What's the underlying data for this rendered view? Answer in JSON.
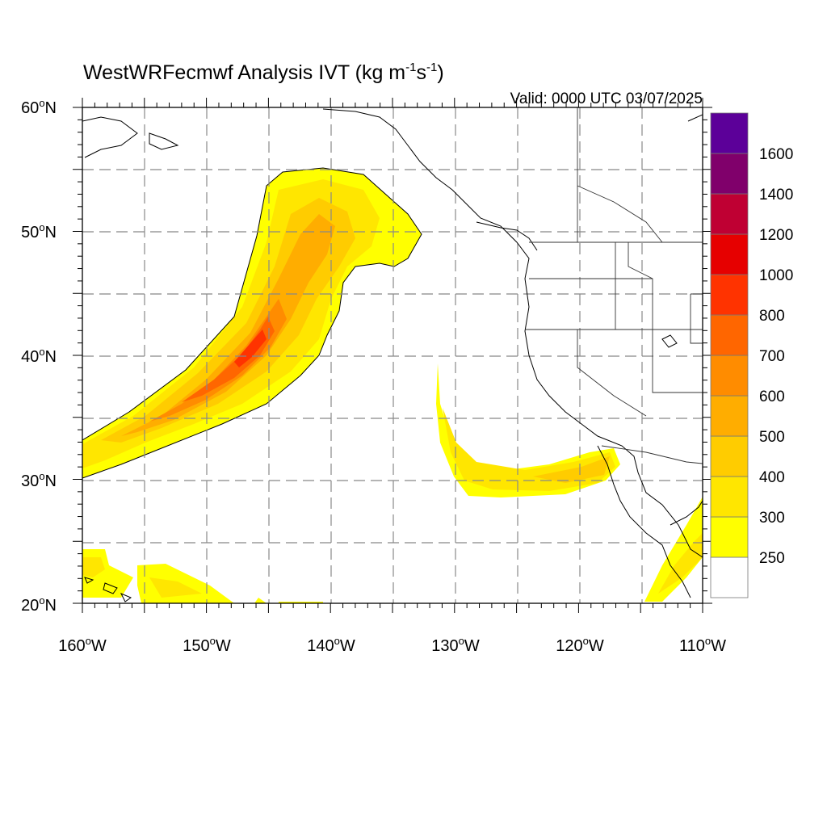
{
  "map": {
    "title_main": "WestWRFecmwf Analysis IVT (kg m",
    "title_exp1": "-1",
    "title_mid": "s",
    "title_exp2": "-1",
    "title_end": ")",
    "valid": "Valid: 0000 UTC 03/07/2025",
    "lon_ticks": [
      "160",
      "150",
      "140",
      "130",
      "120",
      "110"
    ],
    "lon_hemi": "W",
    "lat_ticks": [
      "20",
      "30",
      "40",
      "50",
      "60"
    ],
    "lat_hemi": "N",
    "degree": "o"
  },
  "colorbar": {
    "levels": [
      "250",
      "300",
      "400",
      "500",
      "600",
      "700",
      "800",
      "1000",
      "1200",
      "1400",
      "1600"
    ],
    "colors": [
      "#ffffff",
      "#ffff00",
      "#ffe600",
      "#ffcc00",
      "#ffad00",
      "#ff8c00",
      "#ff6600",
      "#ff3300",
      "#e60000",
      "#bf0033",
      "#80006b",
      "#5c0099"
    ]
  },
  "features": {
    "ocean_color": "#ffffff",
    "grid": "dashed gray every 5 degrees"
  }
}
